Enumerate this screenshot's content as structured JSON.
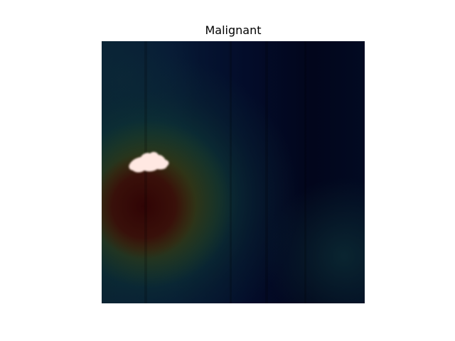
{
  "figure": {
    "title": "Malignant"
  },
  "image": {
    "description_colors": {
      "background": "#ffffff",
      "heatmap_base": "#020a22",
      "hot_region": "#3a0a0a",
      "mid_region": "#0d3a2f",
      "lesion_highlight": "#ffe6e0"
    }
  }
}
